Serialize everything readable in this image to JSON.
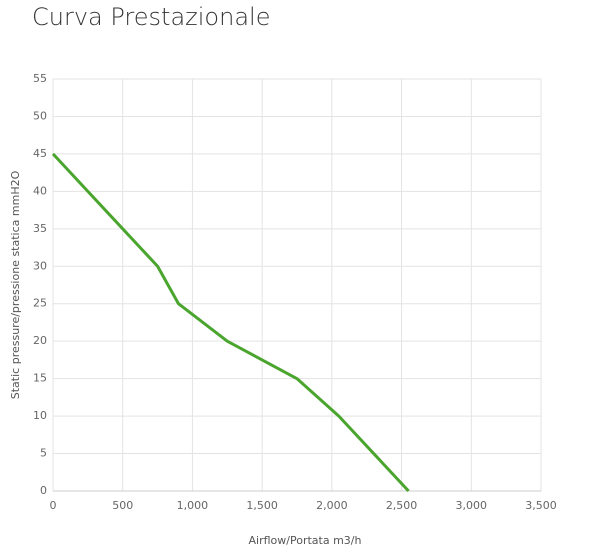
{
  "chart_data": {
    "type": "line",
    "title": "Curva Prestazionale",
    "x_label": "Airflow/Portata m3/h",
    "y_label": "Static pressure/pressione statica mmH2O",
    "x": [
      0,
      250,
      500,
      750,
      900,
      1250,
      1750,
      2050,
      2300,
      2550
    ],
    "values": [
      45,
      40,
      35,
      30,
      25,
      20,
      15,
      10,
      5,
      0
    ],
    "color": "#4aa52e",
    "xlim": [
      0,
      3500
    ],
    "xticks": [
      0,
      500,
      {
        "value": 1000,
        "label": "1,000"
      },
      {
        "value": 1500,
        "label": "1,500"
      },
      {
        "value": 2000,
        "label": "2,000"
      },
      {
        "value": 2500,
        "label": "2,500"
      },
      {
        "value": 3000,
        "label": "3,000"
      },
      {
        "value": 3500,
        "label": "3,500"
      }
    ],
    "ylim": [
      0,
      55
    ],
    "yticks": [
      0,
      5,
      10,
      15,
      20,
      25,
      30,
      35,
      40,
      45,
      50,
      55
    ],
    "grid": true
  }
}
